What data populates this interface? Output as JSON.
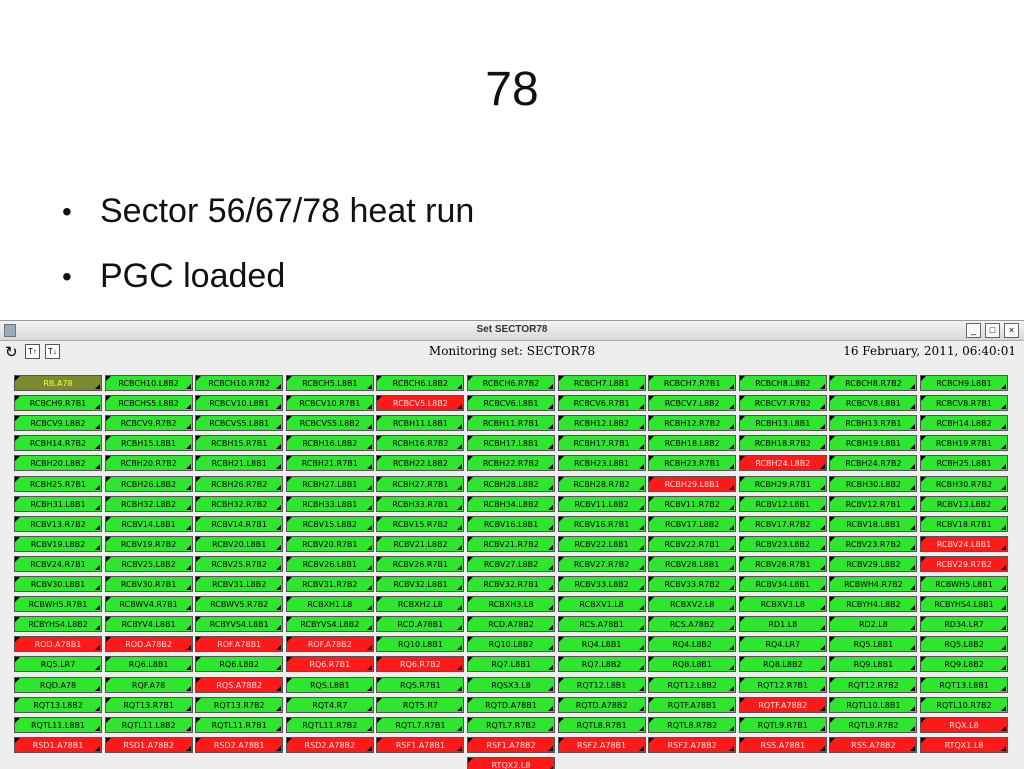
{
  "slide": {
    "title": "78",
    "bullets": [
      "Sector 56/67/78 heat run",
      "PGC loaded"
    ]
  },
  "window": {
    "title": "Set SECTOR78",
    "heading": "Monitoring set: SECTOR78",
    "timestamp": "16 February, 2011, 06:40:01"
  },
  "grid": {
    "rows": [
      [
        {
          "label": "RB.A78",
          "color": "#7a8a2e",
          "text_color": "#ffff40"
        },
        {
          "label": "RCBCH10.L8B2",
          "color": "#2ee62e"
        },
        {
          "label": "RCBCH10.R7B2",
          "color": "#2ee62e"
        },
        {
          "label": "RCBCH5.L8B1",
          "color": "#2ee62e"
        },
        {
          "label": "RCBCH6.L8B2",
          "color": "#2ee62e"
        },
        {
          "label": "RCBCH6.R7B2",
          "color": "#2ee62e"
        },
        {
          "label": "RCBCH7.L8B1",
          "color": "#2ee62e"
        },
        {
          "label": "RCBCH7.R7B1",
          "color": "#2ee62e"
        },
        {
          "label": "RCBCH8.L8B2",
          "color": "#2ee62e"
        },
        {
          "label": "RCBCH8.R7B2",
          "color": "#2ee62e"
        },
        {
          "label": "RCBCH9.L8B1",
          "color": "#2ee62e"
        }
      ],
      [
        {
          "label": "RCBCH9.R7B1",
          "color": "#2ee62e"
        },
        {
          "label": "RCBCHS5.L8B2",
          "color": "#2ee62e"
        },
        {
          "label": "RCBCV10.L8B1",
          "color": "#2ee62e"
        },
        {
          "label": "RCBCV10.R7B1",
          "color": "#2ee62e"
        },
        {
          "label": "RCBCV5.L8B2",
          "color": "#ff1a1a",
          "text_color": "#ffe0e0"
        },
        {
          "label": "RCBCV6.L8B1",
          "color": "#2ee62e"
        },
        {
          "label": "RCBCV6.R7B1",
          "color": "#2ee62e"
        },
        {
          "label": "RCBCV7.L8B2",
          "color": "#2ee62e"
        },
        {
          "label": "RCBCV7.R7B2",
          "color": "#2ee62e"
        },
        {
          "label": "RCBCV8.L8B1",
          "color": "#2ee62e"
        },
        {
          "label": "RCBCV8.R7B1",
          "color": "#2ee62e"
        }
      ],
      [
        {
          "label": "RCBCV9.L8B2",
          "color": "#2ee62e"
        },
        {
          "label": "RCBCV9.R7B2",
          "color": "#2ee62e"
        },
        {
          "label": "RCBCVS5.L8B1",
          "color": "#2ee62e"
        },
        {
          "label": "RCBCVS5.L8B2",
          "color": "#2ee62e"
        },
        {
          "label": "RCBH11.L8B1",
          "color": "#2ee62e"
        },
        {
          "label": "RCBH11.R7B1",
          "color": "#2ee62e"
        },
        {
          "label": "RCBH12.L8B2",
          "color": "#2ee62e"
        },
        {
          "label": "RCBH12.R7B2",
          "color": "#2ee62e"
        },
        {
          "label": "RCBH13.L8B1",
          "color": "#2ee62e"
        },
        {
          "label": "RCBH13.R7B1",
          "color": "#2ee62e"
        },
        {
          "label": "RCBH14.L8B2",
          "color": "#2ee62e"
        }
      ],
      [
        {
          "label": "RCBH14.R7B2",
          "color": "#2ee62e"
        },
        {
          "label": "RCBH15.L8B1",
          "color": "#2ee62e"
        },
        {
          "label": "RCBH15.R7B1",
          "color": "#2ee62e"
        },
        {
          "label": "RCBH16.L8B2",
          "color": "#2ee62e"
        },
        {
          "label": "RCBH16.R7B2",
          "color": "#2ee62e"
        },
        {
          "label": "RCBH17.L8B1",
          "color": "#2ee62e"
        },
        {
          "label": "RCBH17.R7B1",
          "color": "#2ee62e"
        },
        {
          "label": "RCBH18.L8B2",
          "color": "#2ee62e"
        },
        {
          "label": "RCBH18.R7B2",
          "color": "#2ee62e"
        },
        {
          "label": "RCBH19.L8B1",
          "color": "#2ee62e"
        },
        {
          "label": "RCBH19.R7B1",
          "color": "#2ee62e"
        }
      ],
      [
        {
          "label": "RCBH20.L8B2",
          "color": "#2ee62e"
        },
        {
          "label": "RCBH20.R7B2",
          "color": "#2ee62e"
        },
        {
          "label": "RCBH21.L8B1",
          "color": "#2ee62e"
        },
        {
          "label": "RCBH21.R7B1",
          "color": "#2ee62e"
        },
        {
          "label": "RCBH22.L8B2",
          "color": "#2ee62e"
        },
        {
          "label": "RCBH22.R7B2",
          "color": "#2ee62e"
        },
        {
          "label": "RCBH23.L8B1",
          "color": "#2ee62e"
        },
        {
          "label": "RCBH23.R7B1",
          "color": "#2ee62e"
        },
        {
          "label": "RCBH24.L8B2",
          "color": "#ff1a1a",
          "text_color": "#ffe0e0"
        },
        {
          "label": "RCBH24.R7B2",
          "color": "#2ee62e"
        },
        {
          "label": "RCBH25.L8B1",
          "color": "#2ee62e"
        }
      ],
      [
        {
          "label": "RCBH25.R7B1",
          "color": "#2ee62e"
        },
        {
          "label": "RCBH26.L8B2",
          "color": "#2ee62e"
        },
        {
          "label": "RCBH26.R7B2",
          "color": "#2ee62e"
        },
        {
          "label": "RCBH27.L8B1",
          "color": "#2ee62e"
        },
        {
          "label": "RCBH27.R7B1",
          "color": "#2ee62e"
        },
        {
          "label": "RCBH28.L8B2",
          "color": "#2ee62e"
        },
        {
          "label": "RCBH28.R7B2",
          "color": "#2ee62e"
        },
        {
          "label": "RCBH29.L8B1",
          "color": "#ff1a1a",
          "text_color": "#ffe0e0"
        },
        {
          "label": "RCBH29.R7B1",
          "color": "#2ee62e"
        },
        {
          "label": "RCBH30.L8B2",
          "color": "#2ee62e"
        },
        {
          "label": "RCBH30.R7B2",
          "color": "#2ee62e"
        }
      ],
      [
        {
          "label": "RCBH31.L8B1",
          "color": "#2ee62e"
        },
        {
          "label": "RCBH32.L8B2",
          "color": "#2ee62e"
        },
        {
          "label": "RCBH32.R7B2",
          "color": "#2ee62e"
        },
        {
          "label": "RCBH33.L8B1",
          "color": "#2ee62e"
        },
        {
          "label": "RCBH33.R7B1",
          "color": "#2ee62e"
        },
        {
          "label": "RCBH34.L8B2",
          "color": "#2ee62e"
        },
        {
          "label": "RCBV11.L8B2",
          "color": "#2ee62e"
        },
        {
          "label": "RCBV11.R7B2",
          "color": "#2ee62e"
        },
        {
          "label": "RCBV12.L8B1",
          "color": "#2ee62e"
        },
        {
          "label": "RCBV12.R7B1",
          "color": "#2ee62e"
        },
        {
          "label": "RCBV13.L8B2",
          "color": "#2ee62e"
        }
      ],
      [
        {
          "label": "RCBV13.R7B2",
          "color": "#2ee62e"
        },
        {
          "label": "RCBV14.L8B1",
          "color": "#2ee62e"
        },
        {
          "label": "RCBV14.R7B1",
          "color": "#2ee62e"
        },
        {
          "label": "RCBV15.L8B2",
          "color": "#2ee62e"
        },
        {
          "label": "RCBV15.R7B2",
          "color": "#2ee62e"
        },
        {
          "label": "RCBV16.L8B1",
          "color": "#2ee62e"
        },
        {
          "label": "RCBV16.R7B1",
          "color": "#2ee62e"
        },
        {
          "label": "RCBV17.L8B2",
          "color": "#2ee62e"
        },
        {
          "label": "RCBV17.R7B2",
          "color": "#2ee62e"
        },
        {
          "label": "RCBV18.L8B1",
          "color": "#2ee62e"
        },
        {
          "label": "RCBV18.R7B1",
          "color": "#2ee62e"
        }
      ],
      [
        {
          "label": "RCBV19.L8B2",
          "color": "#2ee62e"
        },
        {
          "label": "RCBV19.R7B2",
          "color": "#2ee62e"
        },
        {
          "label": "RCBV20.L8B1",
          "color": "#2ee62e"
        },
        {
          "label": "RCBV20.R7B1",
          "color": "#2ee62e"
        },
        {
          "label": "RCBV21.L8B2",
          "color": "#2ee62e"
        },
        {
          "label": "RCBV21.R7B2",
          "color": "#2ee62e"
        },
        {
          "label": "RCBV22.L8B1",
          "color": "#2ee62e"
        },
        {
          "label": "RCBV22.R7B1",
          "color": "#2ee62e"
        },
        {
          "label": "RCBV23.L8B2",
          "color": "#2ee62e"
        },
        {
          "label": "RCBV23.R7B2",
          "color": "#2ee62e"
        },
        {
          "label": "RCBV24.L8B1",
          "color": "#ff1a1a",
          "text_color": "#ffe0e0"
        }
      ],
      [
        {
          "label": "RCBV24.R7B1",
          "color": "#2ee62e"
        },
        {
          "label": "RCBV25.L8B2",
          "color": "#2ee62e"
        },
        {
          "label": "RCBV25.R7B2",
          "color": "#2ee62e"
        },
        {
          "label": "RCBV26.L8B1",
          "color": "#2ee62e"
        },
        {
          "label": "RCBV26.R7B1",
          "color": "#2ee62e"
        },
        {
          "label": "RCBV27.L8B2",
          "color": "#2ee62e"
        },
        {
          "label": "RCBV27.R7B2",
          "color": "#2ee62e"
        },
        {
          "label": "RCBV28.L8B1",
          "color": "#2ee62e"
        },
        {
          "label": "RCBV28.R7B1",
          "color": "#2ee62e"
        },
        {
          "label": "RCBV29.L8B2",
          "color": "#2ee62e"
        },
        {
          "label": "RCBV29.R7B2",
          "color": "#ff1a1a",
          "text_color": "#ffe0e0"
        }
      ],
      [
        {
          "label": "RCBV30.L8B1",
          "color": "#2ee62e"
        },
        {
          "label": "RCBV30.R7B1",
          "color": "#2ee62e"
        },
        {
          "label": "RCBV31.L8B2",
          "color": "#2ee62e"
        },
        {
          "label": "RCBV31.R7B2",
          "color": "#2ee62e"
        },
        {
          "label": "RCBV32.L8B1",
          "color": "#2ee62e"
        },
        {
          "label": "RCBV32.R7B1",
          "color": "#2ee62e"
        },
        {
          "label": "RCBV33.L8B2",
          "color": "#2ee62e"
        },
        {
          "label": "RCBV33.R7B2",
          "color": "#2ee62e"
        },
        {
          "label": "RCBV34.L8B1",
          "color": "#2ee62e"
        },
        {
          "label": "RCBWH4.R7B2",
          "color": "#2ee62e"
        },
        {
          "label": "RCBWH5.L8B1",
          "color": "#2ee62e"
        }
      ],
      [
        {
          "label": "RCBWH5.R7B1",
          "color": "#2ee62e"
        },
        {
          "label": "RCBWV4.R7B1",
          "color": "#2ee62e"
        },
        {
          "label": "RCBWV5.R7B2",
          "color": "#2ee62e"
        },
        {
          "label": "RCBXH1.L8",
          "color": "#2ee62e"
        },
        {
          "label": "RCBXH2.L8",
          "color": "#2ee62e"
        },
        {
          "label": "RCBXH3.L8",
          "color": "#2ee62e"
        },
        {
          "label": "RCBXV1.L8",
          "color": "#2ee62e"
        },
        {
          "label": "RCBXV2.L8",
          "color": "#2ee62e"
        },
        {
          "label": "RCBXV3.L8",
          "color": "#2ee62e"
        },
        {
          "label": "RCBYH4.L8B2",
          "color": "#2ee62e"
        },
        {
          "label": "RCBYHS4.L8B1",
          "color": "#2ee62e"
        }
      ],
      [
        {
          "label": "RCBYHS4.L8B2",
          "color": "#2ee62e"
        },
        {
          "label": "RCBYV4.L8B1",
          "color": "#2ee62e"
        },
        {
          "label": "RCBYVS4.L8B1",
          "color": "#2ee62e"
        },
        {
          "label": "RCBYVS4.L8B2",
          "color": "#2ee62e"
        },
        {
          "label": "RCD.A78B1",
          "color": "#2ee62e"
        },
        {
          "label": "RCD.A78B2",
          "color": "#2ee62e"
        },
        {
          "label": "RCS.A78B1",
          "color": "#2ee62e"
        },
        {
          "label": "RCS.A78B2",
          "color": "#2ee62e"
        },
        {
          "label": "RD1.L8",
          "color": "#2ee62e"
        },
        {
          "label": "RD2.L8",
          "color": "#2ee62e"
        },
        {
          "label": "RD34.LR7",
          "color": "#2ee62e"
        }
      ],
      [
        {
          "label": "ROD.A78B1",
          "color": "#ff1a1a",
          "text_color": "#ffe0e0"
        },
        {
          "label": "ROD.A78B2",
          "color": "#ff1a1a",
          "text_color": "#ffe0e0"
        },
        {
          "label": "ROF.A78B1",
          "color": "#ff1a1a",
          "text_color": "#ffe0e0"
        },
        {
          "label": "ROF.A78B2",
          "color": "#ff1a1a",
          "text_color": "#ffe0e0"
        },
        {
          "label": "RQ10.L8B1",
          "color": "#2ee62e"
        },
        {
          "label": "RQ10.L8B2",
          "color": "#2ee62e"
        },
        {
          "label": "RQ4.L8B1",
          "color": "#2ee62e"
        },
        {
          "label": "RQ4.L8B2",
          "color": "#2ee62e"
        },
        {
          "label": "RQ4.LR7",
          "color": "#2ee62e"
        },
        {
          "label": "RQ5.L8B1",
          "color": "#2ee62e"
        },
        {
          "label": "RQ5.L8B2",
          "color": "#2ee62e"
        }
      ],
      [
        {
          "label": "RQ5.LR7",
          "color": "#2ee62e"
        },
        {
          "label": "RQ6.L8B1",
          "color": "#2ee62e"
        },
        {
          "label": "RQ6.L8B2",
          "color": "#2ee62e"
        },
        {
          "label": "RQ6.R7B1",
          "color": "#ff1a1a",
          "text_color": "#ffe0e0"
        },
        {
          "label": "RQ6.R7B2",
          "color": "#ff1a1a",
          "text_color": "#ffe0e0"
        },
        {
          "label": "RQ7.L8B1",
          "color": "#2ee62e"
        },
        {
          "label": "RQ7.L8B2",
          "color": "#2ee62e"
        },
        {
          "label": "RQ8.L8B1",
          "color": "#2ee62e"
        },
        {
          "label": "RQ8.L8B2",
          "color": "#2ee62e"
        },
        {
          "label": "RQ9.L8B1",
          "color": "#2ee62e"
        },
        {
          "label": "RQ9.L8B2",
          "color": "#2ee62e"
        }
      ],
      [
        {
          "label": "RQD.A78",
          "color": "#2ee62e"
        },
        {
          "label": "RQF.A78",
          "color": "#2ee62e"
        },
        {
          "label": "RQS.A78B2",
          "color": "#ff1a1a",
          "text_color": "#ffe0e0"
        },
        {
          "label": "RQS.L8B1",
          "color": "#2ee62e"
        },
        {
          "label": "RQS.R7B1",
          "color": "#2ee62e"
        },
        {
          "label": "RQSX3.L8",
          "color": "#2ee62e"
        },
        {
          "label": "RQT12.L8B1",
          "color": "#2ee62e"
        },
        {
          "label": "RQT12.L8B2",
          "color": "#2ee62e"
        },
        {
          "label": "RQT12.R7B1",
          "color": "#2ee62e"
        },
        {
          "label": "RQT12.R7B2",
          "color": "#2ee62e"
        },
        {
          "label": "RQT13.L8B1",
          "color": "#2ee62e"
        }
      ],
      [
        {
          "label": "RQT13.L8B2",
          "color": "#2ee62e"
        },
        {
          "label": "RQT13.R7B1",
          "color": "#2ee62e"
        },
        {
          "label": "RQT13.R7B2",
          "color": "#2ee62e"
        },
        {
          "label": "RQT4.R7",
          "color": "#2ee62e"
        },
        {
          "label": "RQT5.R7",
          "color": "#2ee62e"
        },
        {
          "label": "RQTD.A78B1",
          "color": "#2ee62e"
        },
        {
          "label": "RQTD.A78B2",
          "color": "#2ee62e"
        },
        {
          "label": "RQTF.A78B1",
          "color": "#2ee62e"
        },
        {
          "label": "RQTF.A78B2",
          "color": "#ff1a1a",
          "text_color": "#ffe0e0"
        },
        {
          "label": "RQTL10.L8B1",
          "color": "#2ee62e"
        },
        {
          "label": "RQTL10.R7B2",
          "color": "#2ee62e"
        }
      ],
      [
        {
          "label": "RQTL11.L8B1",
          "color": "#2ee62e"
        },
        {
          "label": "RQTL11.L8B2",
          "color": "#2ee62e"
        },
        {
          "label": "RQTL11.R7B1",
          "color": "#2ee62e"
        },
        {
          "label": "RQTL11.R7B2",
          "color": "#2ee62e"
        },
        {
          "label": "RQTL7.R7B1",
          "color": "#2ee62e"
        },
        {
          "label": "RQTL7.R7B2",
          "color": "#2ee62e"
        },
        {
          "label": "RQTL8.R7B1",
          "color": "#2ee62e"
        },
        {
          "label": "RQTL8.R7B2",
          "color": "#2ee62e"
        },
        {
          "label": "RQTL9.R7B1",
          "color": "#2ee62e"
        },
        {
          "label": "RQTL9.R7B2",
          "color": "#2ee62e"
        },
        {
          "label": "RQX.L8",
          "color": "#ff1a1a",
          "text_color": "#ffe0e0"
        }
      ],
      [
        {
          "label": "RSD1.A78B1",
          "color": "#ff1a1a",
          "text_color": "#ffe0e0"
        },
        {
          "label": "RSD1.A78B2",
          "color": "#ff1a1a",
          "text_color": "#ffe0e0"
        },
        {
          "label": "RSD2.A78B1",
          "color": "#ff1a1a",
          "text_color": "#ffe0e0"
        },
        {
          "label": "RSD2.A78B2",
          "color": "#ff1a1a",
          "text_color": "#ffe0e0"
        },
        {
          "label": "RSF1.A78B1",
          "color": "#ff1a1a",
          "text_color": "#ffe0e0"
        },
        {
          "label": "RSF1.A78B2",
          "color": "#ff1a1a",
          "text_color": "#ffe0e0"
        },
        {
          "label": "RSF2.A78B1",
          "color": "#ff1a1a",
          "text_color": "#ffe0e0"
        },
        {
          "label": "RSF2.A78B2",
          "color": "#ff1a1a",
          "text_color": "#ffe0e0"
        },
        {
          "label": "RSS.A78B1",
          "color": "#ff1a1a",
          "text_color": "#ffe0e0"
        },
        {
          "label": "RSS.A78B2",
          "color": "#ff1a1a",
          "text_color": "#ffe0e0"
        },
        {
          "label": "RTQX1.L8",
          "color": "#ff1a1a",
          "text_color": "#ffe0e0"
        }
      ],
      [
        null,
        null,
        null,
        null,
        null,
        {
          "label": "RTQX2.L8",
          "color": "#ff1a1a",
          "text_color": "#ffe0e0"
        }
      ]
    ]
  }
}
